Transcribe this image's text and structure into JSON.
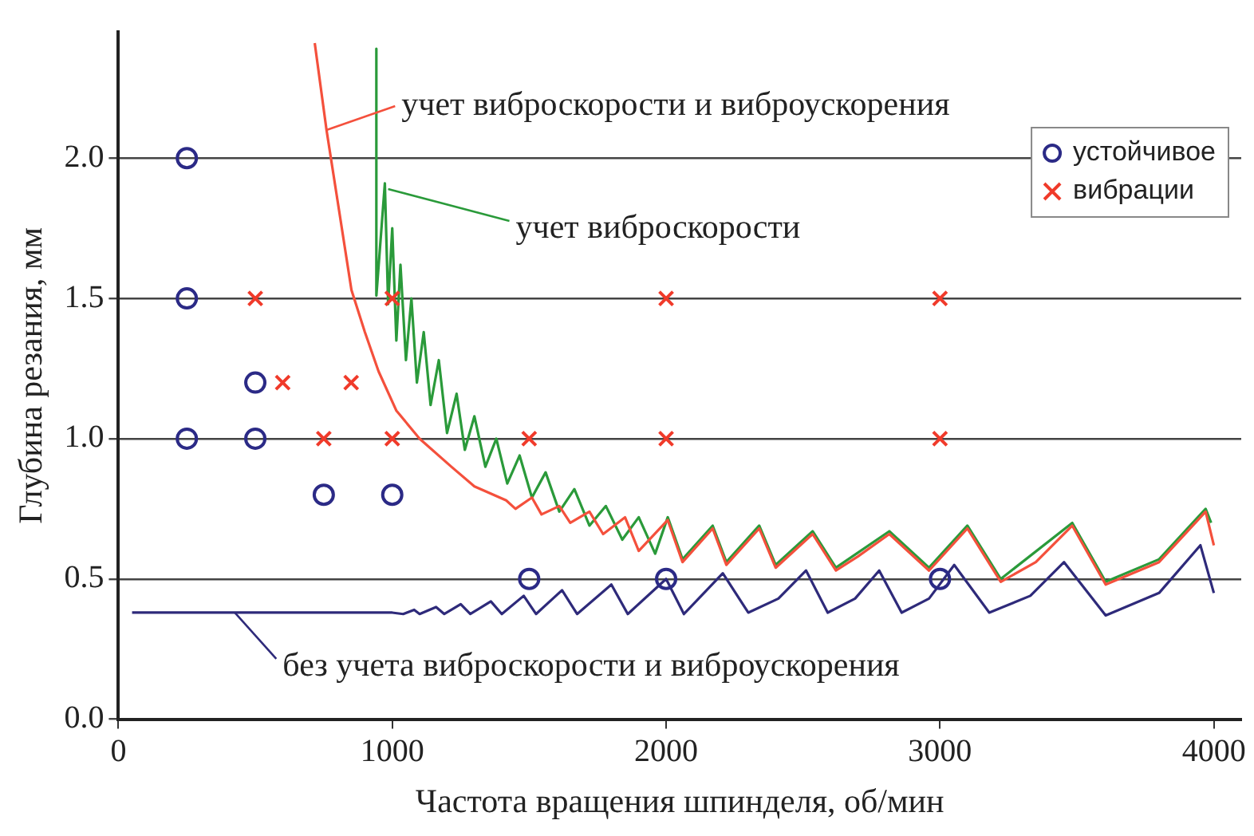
{
  "chart_data": {
    "type": "scatter",
    "xlabel": "Частота вращения шпинделя, об/мин",
    "ylabel": "Глубина резания, мм",
    "xlim": [
      0,
      4100
    ],
    "ylim": [
      0,
      2.45
    ],
    "xticks": [
      0,
      1000,
      2000,
      3000,
      4000
    ],
    "yticks": [
      {
        "value": 0,
        "label": "0.0"
      },
      {
        "value": 0.5,
        "label": "0.5"
      },
      {
        "value": 1,
        "label": "1.0"
      },
      {
        "value": 1.5,
        "label": "1.5"
      },
      {
        "value": 2,
        "label": "2.0"
      }
    ],
    "grid": "y",
    "legend": "top right",
    "series": [
      {
        "name": "устойчивое",
        "type": "scatter",
        "marker": "circle",
        "color": "#2b2a86",
        "x": [
          250,
          250,
          250,
          500,
          500,
          750,
          1000,
          1500,
          2000,
          3000
        ],
        "values": [
          2.0,
          1.5,
          1.0,
          1.0,
          1.2,
          0.8,
          0.8,
          0.5,
          0.5,
          0.5
        ]
      },
      {
        "name": "вибрации",
        "type": "scatter",
        "marker": "cross",
        "color": "#f03a2a",
        "x": [
          500,
          1000,
          2000,
          3000,
          600,
          850,
          750,
          1000,
          1500,
          2000,
          3000
        ],
        "values": [
          1.5,
          1.5,
          1.5,
          1.5,
          1.2,
          1.2,
          1.0,
          1.0,
          1.0,
          1.0,
          1.0
        ]
      },
      {
        "type": "line",
        "marker": "none",
        "line_style": "solid",
        "color": "#f4503c",
        "x": [
          717,
          760,
          800,
          851,
          900,
          950,
          1015,
          1100,
          1216,
          1300,
          1416,
          1450,
          1510,
          1545,
          1610,
          1650,
          1720,
          1770,
          1850,
          1900,
          2006,
          2060,
          2170,
          2220,
          2340,
          2400,
          2535,
          2620,
          2700,
          2815,
          2960,
          3100,
          3222,
          3350,
          3483,
          3605,
          3800,
          3970,
          4000
        ],
        "values": [
          2.41,
          2.1,
          1.85,
          1.53,
          1.38,
          1.24,
          1.1,
          1.0,
          0.9,
          0.83,
          0.78,
          0.75,
          0.79,
          0.73,
          0.76,
          0.7,
          0.74,
          0.66,
          0.72,
          0.6,
          0.71,
          0.56,
          0.68,
          0.55,
          0.68,
          0.54,
          0.66,
          0.53,
          0.58,
          0.66,
          0.53,
          0.68,
          0.49,
          0.56,
          0.69,
          0.48,
          0.56,
          0.74,
          0.62
        ]
      },
      {
        "type": "line",
        "marker": "none",
        "line_style": "solid",
        "color": "#2a9a3a",
        "x": [
          942,
          942,
          973,
          985,
          1000,
          1015,
          1030,
          1050,
          1070,
          1090,
          1115,
          1140,
          1170,
          1200,
          1235,
          1265,
          1300,
          1340,
          1380,
          1420,
          1465,
          1510,
          1560,
          1610,
          1665,
          1720,
          1780,
          1840,
          1900,
          1960,
          2006,
          2060,
          2170,
          2220,
          2340,
          2400,
          2535,
          2620,
          2815,
          2960,
          3100,
          3222,
          3483,
          3605,
          3800,
          3970,
          3990
        ],
        "values": [
          2.39,
          1.51,
          1.91,
          1.48,
          1.75,
          1.35,
          1.62,
          1.28,
          1.5,
          1.2,
          1.38,
          1.12,
          1.28,
          1.02,
          1.16,
          0.96,
          1.08,
          0.9,
          1.0,
          0.84,
          0.94,
          0.79,
          0.88,
          0.74,
          0.82,
          0.69,
          0.76,
          0.64,
          0.72,
          0.59,
          0.72,
          0.57,
          0.69,
          0.56,
          0.69,
          0.55,
          0.67,
          0.54,
          0.67,
          0.54,
          0.69,
          0.5,
          0.7,
          0.49,
          0.57,
          0.75,
          0.7
        ]
      },
      {
        "type": "line",
        "marker": "none",
        "line_style": "solid",
        "color": "#2e2a7a",
        "x": [
          50,
          900,
          1000,
          1040,
          1080,
          1100,
          1160,
          1190,
          1250,
          1285,
          1360,
          1400,
          1480,
          1525,
          1620,
          1675,
          1800,
          1860,
          2000,
          2065,
          2207,
          2300,
          2410,
          2511,
          2590,
          2690,
          2778,
          2860,
          2960,
          3052,
          3180,
          3330,
          3453,
          3605,
          3800,
          3951,
          4000
        ],
        "values": [
          0.38,
          0.38,
          0.38,
          0.375,
          0.39,
          0.375,
          0.4,
          0.375,
          0.41,
          0.375,
          0.42,
          0.375,
          0.44,
          0.375,
          0.46,
          0.375,
          0.48,
          0.375,
          0.5,
          0.375,
          0.52,
          0.38,
          0.43,
          0.53,
          0.38,
          0.43,
          0.53,
          0.38,
          0.43,
          0.55,
          0.38,
          0.44,
          0.56,
          0.37,
          0.45,
          0.62,
          0.45
        ]
      }
    ],
    "annotations": [
      {
        "text": "учет виброскорости и виброускорения",
        "x": 760,
        "y": 2.1
      },
      {
        "text": "учет виброскорости",
        "x": 985,
        "y": 1.89
      },
      {
        "text": "без учета виброскорости и виброускорения",
        "x": 425,
        "y": 0.38
      }
    ]
  }
}
